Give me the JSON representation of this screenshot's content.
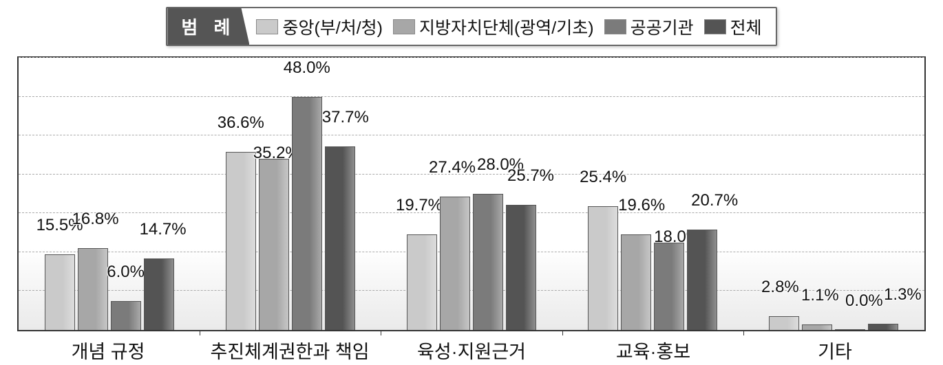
{
  "chart": {
    "type": "bar",
    "legend_title": "범 례",
    "series": [
      {
        "key": "central",
        "label": "중앙(부/처/청)",
        "color": "#cacaca"
      },
      {
        "key": "local",
        "label": "지방자치단체(광역/기초)",
        "color": "#a7a7a7"
      },
      {
        "key": "public",
        "label": "공공기관",
        "color": "#7b7b7b"
      },
      {
        "key": "total",
        "label": "전체",
        "color": "#545454"
      }
    ],
    "y": {
      "max": 56,
      "gridlines": [
        8,
        16,
        24,
        32,
        40,
        48,
        56
      ]
    },
    "categories": [
      {
        "label": "개념 규정",
        "values": [
          15.5,
          16.8,
          6.0,
          14.7
        ],
        "display": [
          "15.5%",
          "16.8%",
          "6.0%",
          "14.7%"
        ],
        "label_offsets_y": [
          -28,
          -28,
          -28,
          -28
        ],
        "label_offsets_x": [
          0,
          4,
          0,
          6
        ]
      },
      {
        "label": "추진체계권한과 책임",
        "values": [
          36.6,
          35.2,
          48.0,
          37.7
        ],
        "display": [
          "36.6%",
          "35.2%",
          "48.0%",
          "37.7%"
        ],
        "label_offsets_y": [
          -28,
          6,
          -28,
          -28
        ],
        "label_offsets_x": [
          0,
          4,
          0,
          8
        ]
      },
      {
        "label": "육성·지원근거",
        "values": [
          19.7,
          27.4,
          28.0,
          25.7
        ],
        "display": [
          "19.7%",
          "27.4%",
          "28.0%",
          "25.7%"
        ],
        "label_offsets_y": [
          -28,
          -28,
          -28,
          -28
        ],
        "label_offsets_x": [
          -4,
          -4,
          18,
          14
        ]
      },
      {
        "label": "교육·홍보",
        "values": [
          25.4,
          19.6,
          18.0,
          20.7
        ],
        "display": [
          "25.4%",
          "19.6%",
          "18.0%",
          "20.7%"
        ],
        "label_offsets_y": [
          -28,
          -28,
          6,
          -28
        ],
        "label_offsets_x": [
          0,
          8,
          12,
          18
        ]
      },
      {
        "label": "기타",
        "values": [
          2.8,
          1.1,
          0.0,
          1.3
        ],
        "display": [
          "2.8%",
          "1.1%",
          "0.0%",
          "1.3%"
        ],
        "label_offsets_y": [
          -28,
          -28,
          -28,
          -28
        ],
        "label_offsets_x": [
          -6,
          4,
          20,
          28
        ]
      }
    ],
    "background_color": "#ffffff",
    "grid_color": "#aaaaaa"
  }
}
